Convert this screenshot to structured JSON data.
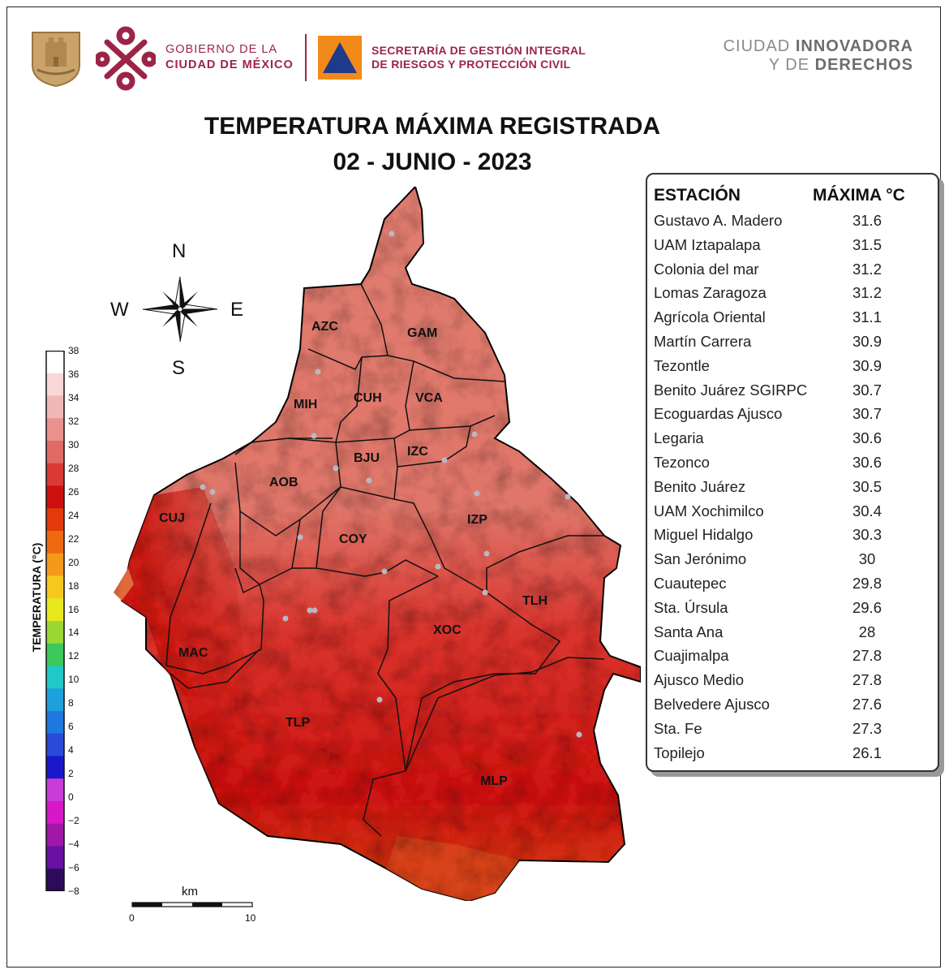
{
  "header": {
    "gov_line1": "GOBIERNO DE LA",
    "gov_line2": "CIUDAD DE MÉXICO",
    "sec_line1": "SECRETARÍA DE GESTIÓN INTEGRAL",
    "sec_line2": "DE RIESGOS Y PROTECCIÓN CIVIL",
    "city_line1_a": "CIUDAD ",
    "city_line1_b": "INNOVADORA",
    "city_line2_a": "Y DE ",
    "city_line2_b": "DERECHOS"
  },
  "title": {
    "line1": "TEMPERATURA MÁXIMA REGISTRADA",
    "line2": "02 - JUNIO - 2023"
  },
  "compass": {
    "n": "N",
    "s": "S",
    "e": "E",
    "w": "W"
  },
  "colorbar": {
    "label": "TEMPERATURA (°C)",
    "ticks": [
      "38",
      "36",
      "34",
      "32",
      "30",
      "28",
      "26",
      "24",
      "22",
      "20",
      "18",
      "16",
      "14",
      "12",
      "10",
      "8",
      "6",
      "4",
      "2",
      "0",
      "−2",
      "−4",
      "−6",
      "−8"
    ],
    "colors": [
      "#ffffff",
      "#f7d8d6",
      "#f0b8b4",
      "#e9928d",
      "#e06a66",
      "#d93a36",
      "#cc1010",
      "#e23a0a",
      "#ee6a10",
      "#f39a1a",
      "#f6c81e",
      "#e8e81e",
      "#9ad833",
      "#3cc85c",
      "#22c8c8",
      "#1ea0dc",
      "#1e78e0",
      "#2a4ad8",
      "#1a18c8",
      "#c83cd8",
      "#d818c8",
      "#a018a8",
      "#6a10a0",
      "#2e0a5a",
      "#111111"
    ]
  },
  "scale": {
    "unit": "km",
    "min": "0",
    "max": "10"
  },
  "districts": [
    {
      "code": "AZC"
    },
    {
      "code": "GAM"
    },
    {
      "code": "MIH"
    },
    {
      "code": "CUH"
    },
    {
      "code": "VCA"
    },
    {
      "code": "BJU"
    },
    {
      "code": "IZC"
    },
    {
      "code": "AOB"
    },
    {
      "code": "CUJ"
    },
    {
      "code": "COY"
    },
    {
      "code": "IZP"
    },
    {
      "code": "TLH"
    },
    {
      "code": "XOC"
    },
    {
      "code": "MAC"
    },
    {
      "code": "TLP"
    },
    {
      "code": "MLP"
    }
  ],
  "table": {
    "col_station": "ESTACIÓN",
    "col_max": "MÁXIMA °C",
    "rows": [
      {
        "station": "Gustavo A. Madero",
        "max": "31.6"
      },
      {
        "station": "UAM Iztapalapa",
        "max": "31.5"
      },
      {
        "station": "Colonia del mar",
        "max": "31.2"
      },
      {
        "station": "Lomas Zaragoza",
        "max": "31.2"
      },
      {
        "station": "Agrícola Oriental",
        "max": "31.1"
      },
      {
        "station": "Martín Carrera",
        "max": "30.9"
      },
      {
        "station": "Tezontle",
        "max": "30.9"
      },
      {
        "station": "Benito Juárez SGIRPC",
        "max": "30.7"
      },
      {
        "station": "Ecoguardas Ajusco",
        "max": "30.7"
      },
      {
        "station": "Legaria",
        "max": "30.6"
      },
      {
        "station": "Tezonco",
        "max": "30.6"
      },
      {
        "station": "Benito Juárez",
        "max": "30.5"
      },
      {
        "station": "UAM Xochimilco",
        "max": "30.4"
      },
      {
        "station": "Miguel Hidalgo",
        "max": "30.3"
      },
      {
        "station": "San Jerónimo",
        "max": "30"
      },
      {
        "station": "Cuautepec",
        "max": "29.8"
      },
      {
        "station": "Sta. Úrsula",
        "max": "29.6"
      },
      {
        "station": "Santa Ana",
        "max": "28"
      },
      {
        "station": "Cuajimalpa",
        "max": "27.8"
      },
      {
        "station": "Ajusco Medio",
        "max": "27.8"
      },
      {
        "station": "Belvedere Ajusco",
        "max": "27.6"
      },
      {
        "station": "Sta. Fe",
        "max": "27.3"
      },
      {
        "station": "Topilejo",
        "max": "26.1"
      }
    ]
  }
}
